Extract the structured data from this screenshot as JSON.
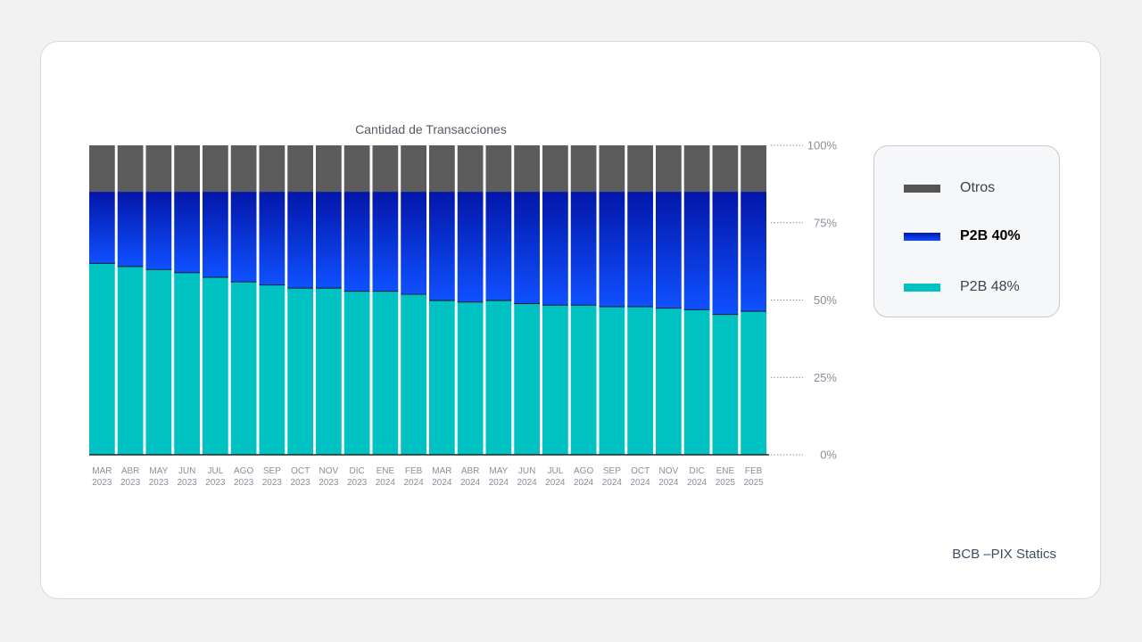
{
  "chart_data": {
    "type": "bar",
    "stacked": true,
    "title": "Cantidad de Transacciones",
    "categories": [
      "MAR 2023",
      "ABR 2023",
      "MAY 2023",
      "JUN 2023",
      "JUL 2023",
      "AGO 2023",
      "SEP 2023",
      "OCT 2023",
      "NOV 2023",
      "DIC 2023",
      "ENE 2024",
      "FEB 2024",
      "MAR 2024",
      "ABR 2024",
      "MAY 2024",
      "JUN 2024",
      "JUL 2024",
      "AGO 2024",
      "SEP 2024",
      "OCT 2024",
      "NOV 2024",
      "DIC 2024",
      "ENE 2025",
      "FEB 2025"
    ],
    "series": [
      {
        "name": "P2B 48%",
        "color": "#00c2c2",
        "values": [
          62,
          61,
          60,
          59,
          57.5,
          56,
          55,
          54,
          54,
          53,
          53,
          52,
          50,
          49.5,
          50,
          49,
          48.5,
          48.5,
          48,
          48,
          47.5,
          47,
          45.5,
          46.5
        ]
      },
      {
        "name": "P2B 40%",
        "color": "#0a3cf0",
        "values": [
          23,
          24,
          25,
          26,
          27.5,
          29,
          30,
          31,
          31,
          32,
          32,
          33,
          35,
          35.5,
          35,
          36,
          36.5,
          36.5,
          37,
          37,
          37.5,
          38,
          39.5,
          38.5
        ]
      },
      {
        "name": "Otros",
        "color": "#5c5c5c",
        "values": [
          15,
          15,
          15,
          15,
          15,
          15,
          15,
          15,
          15,
          15,
          15,
          15,
          15,
          15,
          15,
          15,
          15,
          15,
          15,
          15,
          15,
          15,
          15,
          15
        ]
      }
    ],
    "y_ticks": [
      "100%",
      "75%",
      "50%",
      "25%",
      "0%"
    ],
    "ylim": [
      0,
      100
    ],
    "grid": false,
    "legend_position": "right"
  },
  "legend": {
    "items": [
      {
        "label": "Otros",
        "color": "#5c5c5c"
      },
      {
        "label": "P2B 40%",
        "color": "#0a3cf0"
      },
      {
        "label": "P2B 48%",
        "color": "#00c2c2"
      }
    ]
  },
  "source": "BCB –PIX Statics"
}
